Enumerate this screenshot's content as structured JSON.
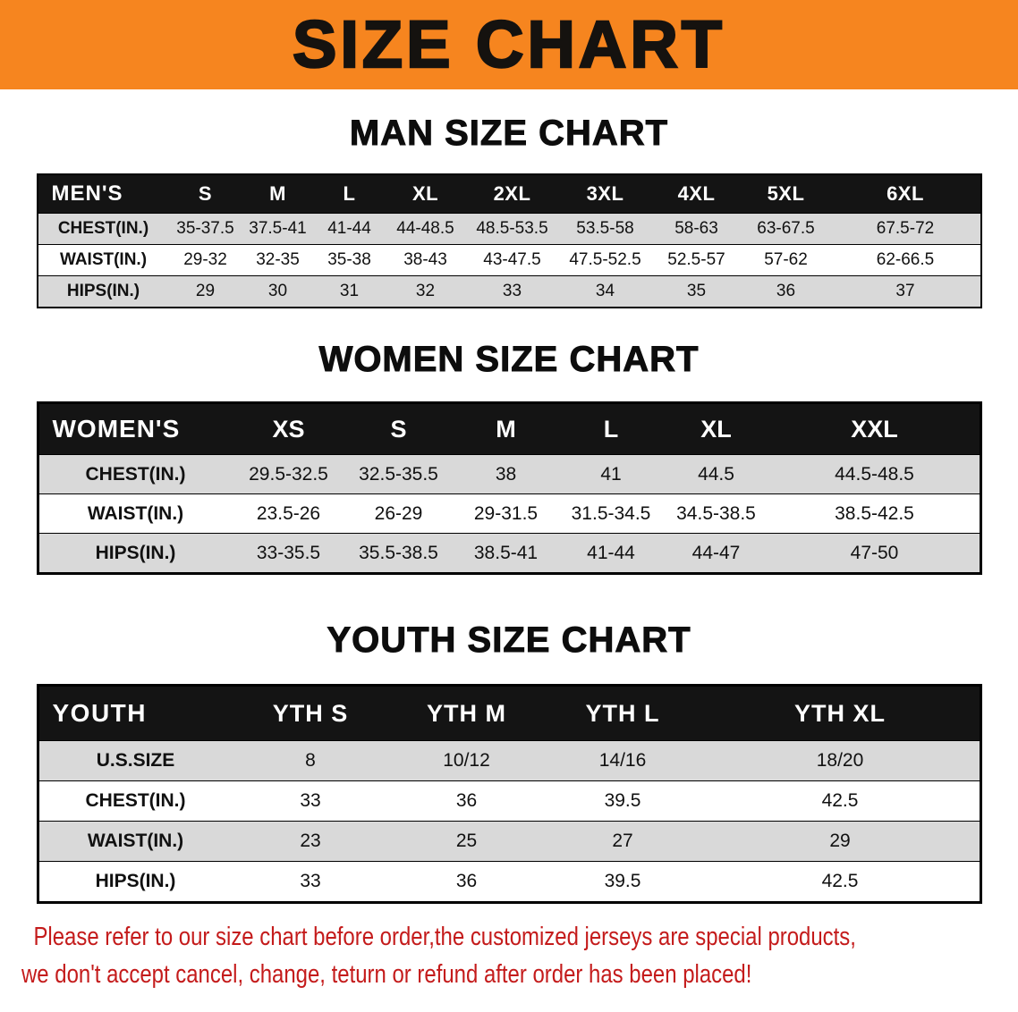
{
  "banner": {
    "title": "SIZE CHART"
  },
  "tables": [
    {
      "heading": "MAN SIZE CHART",
      "header": [
        "MEN'S",
        "S",
        "M",
        "L",
        "XL",
        "2XL",
        "3XL",
        "4XL",
        "5XL",
        "6XL"
      ],
      "rows": [
        [
          "CHEST(IN.)",
          "35-37.5",
          "37.5-41",
          "41-44",
          "44-48.5",
          "48.5-53.5",
          "53.5-58",
          "58-63",
          "63-67.5",
          "67.5-72"
        ],
        [
          "WAIST(IN.)",
          "29-32",
          "32-35",
          "35-38",
          "38-43",
          "43-47.5",
          "47.5-52.5",
          "52.5-57",
          "57-62",
          "62-66.5"
        ],
        [
          "HIPS(IN.)",
          "29",
          "30",
          "31",
          "32",
          "33",
          "34",
          "35",
          "36",
          "37"
        ]
      ]
    },
    {
      "heading": "WOMEN SIZE CHART",
      "header": [
        "WOMEN'S",
        "XS",
        "S",
        "M",
        "L",
        "XL",
        "XXL"
      ],
      "rows": [
        [
          "CHEST(IN.)",
          "29.5-32.5",
          "32.5-35.5",
          "38",
          "41",
          "44.5",
          "44.5-48.5"
        ],
        [
          "WAIST(IN.)",
          "23.5-26",
          "26-29",
          "29-31.5",
          "31.5-34.5",
          "34.5-38.5",
          "38.5-42.5"
        ],
        [
          "HIPS(IN.)",
          "33-35.5",
          "35.5-38.5",
          "38.5-41",
          "41-44",
          "44-47",
          "47-50"
        ]
      ]
    },
    {
      "heading": "YOUTH SIZE CHART",
      "header": [
        "YOUTH",
        "YTH S",
        "YTH M",
        "YTH L",
        "YTH XL"
      ],
      "rows": [
        [
          "U.S.SIZE",
          "8",
          "10/12",
          "14/16",
          "18/20"
        ],
        [
          "CHEST(IN.)",
          "33",
          "36",
          "39.5",
          "42.5"
        ],
        [
          "WAIST(IN.)",
          "23",
          "25",
          "27",
          "29"
        ],
        [
          "HIPS(IN.)",
          "33",
          "36",
          "39.5",
          "42.5"
        ]
      ]
    }
  ],
  "disclaimer": {
    "line1": "Please refer to our size chart before order,the customized jerseys are special products,",
    "line2": "we don't accept cancel, change, teturn or refund after order has been placed!"
  },
  "colors": {
    "banner_bg": "#f6851f",
    "header_bg": "#141414",
    "row_shade": "#d9d9d9",
    "disclaimer_text": "#c41b1b"
  }
}
